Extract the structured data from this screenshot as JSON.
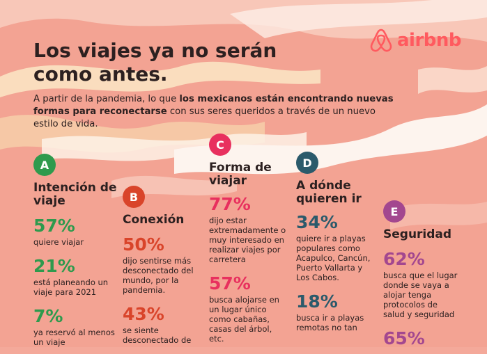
{
  "brand": {
    "logo_text": "airbnb",
    "color": "#ff5a5f"
  },
  "title": "Los viajes ya no serán como antes.",
  "intro": {
    "part1": "A partir de la pandemia, lo que ",
    "bold": "los mexicanos están encontrando nuevas formas para reconectarse",
    "part2": " con sus seres queridos a través de un nuevo estilo de vida."
  },
  "colors": {
    "A": "#2e9a4d",
    "B": "#d9442a",
    "C": "#e8305e",
    "D": "#2b5a6b",
    "E": "#a3478f"
  },
  "sections": {
    "A": {
      "letter": "A",
      "title": "Intención de viaje",
      "stats": [
        {
          "value": "57%",
          "text": "quiere viajar"
        },
        {
          "value": "21%",
          "text": "está planeando un viaje para 2021"
        },
        {
          "value": "7%",
          "text": "ya reservó al menos un viaje"
        }
      ]
    },
    "B": {
      "letter": "B",
      "title": "Conexión",
      "stats": [
        {
          "value": "50%",
          "text": "dijo sentirse más desconectado del mundo, por la pandemia."
        },
        {
          "value": "43%",
          "text": "se siente desconectado de"
        }
      ]
    },
    "C": {
      "letter": "C",
      "title": "Forma de viajar",
      "stats": [
        {
          "value": "77%",
          "text": "dijo estar extremadamente o muy interesado en realizar viajes por carretera"
        },
        {
          "value": "57%",
          "text": "busca alojarse en un lugar único como cabañas, casas del árbol, etc."
        }
      ]
    },
    "D": {
      "letter": "D",
      "title": "A dónde quieren ir",
      "stats": [
        {
          "value": "34%",
          "text": "quiere ir a playas populares como Acapulco, Cancún, Puerto Vallarta y Los Cabos."
        },
        {
          "value": "18%",
          "text": "busca ir a playas remotas no tan"
        }
      ]
    },
    "E": {
      "letter": "E",
      "title": "Seguridad",
      "stats": [
        {
          "value": "62%",
          "text": "busca que el lugar donde se vaya a alojar tenga protocolos de salud y seguridad"
        },
        {
          "value": "65%",
          "text": ""
        }
      ]
    }
  }
}
